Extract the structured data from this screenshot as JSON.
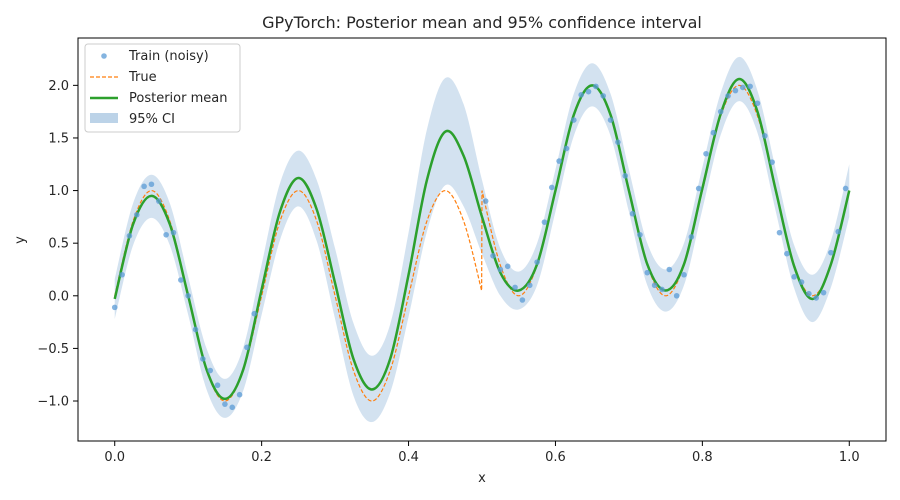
{
  "chart_data": {
    "type": "line",
    "title": "GPyTorch: Posterior mean and 95% confidence interval",
    "xlabel": "x",
    "ylabel": "y",
    "xlim": [
      -0.05,
      1.05
    ],
    "ylim": [
      -1.38,
      2.45
    ],
    "xticks": [
      0.0,
      0.2,
      0.4,
      0.6,
      0.8,
      1.0
    ],
    "xtick_labels": [
      "0.0",
      "0.2",
      "0.4",
      "0.6",
      "0.8",
      "1.0"
    ],
    "yticks": [
      -1.0,
      -0.5,
      0.0,
      0.5,
      1.0,
      1.5,
      2.0
    ],
    "ytick_labels": [
      "−1.0",
      "−0.5",
      "0.0",
      "0.5",
      "1.0",
      "1.5",
      "2.0"
    ],
    "grid": false,
    "legend_position": "top-left",
    "legend": [
      "Train (noisy)",
      "True",
      "Posterior mean",
      "95% CI"
    ],
    "colors": {
      "train": "#5b9bd5",
      "true": "#ff7f0e",
      "mean": "#2ca02c",
      "ci": "#bcd3e8"
    },
    "series": [
      {
        "name": "Train (noisy)",
        "kind": "scatter",
        "x": [
          0.0,
          0.01,
          0.02,
          0.03,
          0.04,
          0.05,
          0.06,
          0.07,
          0.08,
          0.09,
          0.1,
          0.11,
          0.12,
          0.13,
          0.14,
          0.15,
          0.16,
          0.17,
          0.18,
          0.19,
          0.505,
          0.515,
          0.525,
          0.535,
          0.545,
          0.555,
          0.565,
          0.575,
          0.585,
          0.595,
          0.605,
          0.615,
          0.625,
          0.635,
          0.645,
          0.655,
          0.665,
          0.675,
          0.685,
          0.695,
          0.705,
          0.715,
          0.725,
          0.735,
          0.745,
          0.755,
          0.765,
          0.775,
          0.785,
          0.795,
          0.805,
          0.815,
          0.825,
          0.835,
          0.845,
          0.855,
          0.865,
          0.875,
          0.885,
          0.895,
          0.905,
          0.915,
          0.925,
          0.935,
          0.945,
          0.955,
          0.965,
          0.975,
          0.985,
          0.995
        ],
        "y": [
          -0.11,
          0.2,
          0.57,
          0.77,
          1.04,
          1.06,
          0.9,
          0.58,
          0.6,
          0.15,
          0.0,
          -0.32,
          -0.6,
          -0.71,
          -0.85,
          -1.03,
          -1.06,
          -0.94,
          -0.49,
          -0.17,
          0.9,
          0.38,
          0.25,
          0.28,
          0.08,
          -0.04,
          0.1,
          0.32,
          0.7,
          1.03,
          1.28,
          1.4,
          1.67,
          1.91,
          1.94,
          1.99,
          1.9,
          1.67,
          1.46,
          1.14,
          0.78,
          0.58,
          0.22,
          0.1,
          0.06,
          0.25,
          0.0,
          0.2,
          0.56,
          1.02,
          1.35,
          1.55,
          1.75,
          1.9,
          1.95,
          1.98,
          1.99,
          1.83,
          1.52,
          1.27,
          0.6,
          0.4,
          0.18,
          0.13,
          0.02,
          -0.02,
          0.03,
          0.41,
          0.61,
          1.02
        ]
      },
      {
        "name": "True",
        "kind": "line",
        "style": "dashed",
        "x": [
          0.0,
          0.025,
          0.05,
          0.075,
          0.1,
          0.125,
          0.15,
          0.175,
          0.2,
          0.225,
          0.25,
          0.275,
          0.3,
          0.325,
          0.35,
          0.375,
          0.4,
          0.425,
          0.45,
          0.475,
          0.4995,
          0.5,
          0.525,
          0.55,
          0.575,
          0.6,
          0.625,
          0.65,
          0.675,
          0.7,
          0.725,
          0.75,
          0.775,
          0.8,
          0.825,
          0.85,
          0.875,
          0.9,
          0.925,
          0.95,
          0.975,
          1.0
        ],
        "y": [
          0.0,
          0.71,
          1.0,
          0.71,
          0.0,
          -0.71,
          -1.0,
          -0.71,
          0.0,
          0.71,
          1.0,
          0.71,
          0.0,
          -0.71,
          -1.0,
          -0.71,
          0.0,
          0.71,
          1.0,
          0.71,
          0.05,
          1.0,
          0.29,
          0.0,
          0.29,
          1.0,
          1.71,
          2.0,
          1.71,
          1.0,
          0.29,
          0.0,
          0.29,
          1.0,
          1.71,
          2.0,
          1.71,
          1.0,
          0.29,
          0.0,
          0.29,
          1.0
        ]
      },
      {
        "name": "Posterior mean",
        "kind": "line",
        "x": [
          0.0,
          0.025,
          0.05,
          0.075,
          0.1,
          0.125,
          0.15,
          0.175,
          0.2,
          0.225,
          0.25,
          0.275,
          0.3,
          0.325,
          0.35,
          0.375,
          0.4,
          0.425,
          0.45,
          0.475,
          0.5,
          0.525,
          0.55,
          0.575,
          0.6,
          0.625,
          0.65,
          0.675,
          0.7,
          0.725,
          0.75,
          0.775,
          0.8,
          0.825,
          0.85,
          0.875,
          0.9,
          0.925,
          0.95,
          0.975,
          1.0
        ],
        "y": [
          -0.03,
          0.68,
          0.95,
          0.68,
          0.0,
          -0.7,
          -0.98,
          -0.7,
          0.06,
          0.8,
          1.12,
          0.82,
          0.12,
          -0.6,
          -0.89,
          -0.6,
          0.2,
          1.1,
          1.56,
          1.33,
          0.75,
          0.22,
          0.05,
          0.3,
          1.0,
          1.72,
          2.0,
          1.72,
          1.0,
          0.3,
          0.05,
          0.3,
          1.02,
          1.73,
          2.06,
          1.75,
          1.0,
          0.28,
          -0.03,
          0.3,
          1.0
        ]
      },
      {
        "name": "95% CI",
        "kind": "band",
        "x": [
          0.0,
          0.025,
          0.05,
          0.075,
          0.1,
          0.125,
          0.15,
          0.175,
          0.2,
          0.225,
          0.25,
          0.275,
          0.3,
          0.325,
          0.35,
          0.375,
          0.4,
          0.425,
          0.45,
          0.475,
          0.5,
          0.525,
          0.55,
          0.575,
          0.6,
          0.625,
          0.65,
          0.675,
          0.7,
          0.725,
          0.75,
          0.775,
          0.8,
          0.825,
          0.85,
          0.875,
          0.9,
          0.925,
          0.95,
          0.975,
          1.0
        ],
        "lower": [
          -0.22,
          0.48,
          0.74,
          0.48,
          -0.18,
          -0.89,
          -1.16,
          -0.9,
          -0.18,
          0.53,
          0.85,
          0.52,
          -0.22,
          -0.95,
          -1.2,
          -0.92,
          -0.2,
          0.61,
          1.05,
          0.85,
          0.4,
          0.0,
          -0.13,
          0.1,
          0.8,
          1.52,
          1.8,
          1.52,
          0.8,
          0.1,
          -0.15,
          0.1,
          0.82,
          1.53,
          1.85,
          1.55,
          0.8,
          0.07,
          -0.25,
          0.08,
          0.75
        ],
        "upper": [
          0.16,
          0.88,
          1.15,
          0.88,
          0.18,
          -0.5,
          -0.79,
          -0.49,
          0.3,
          1.07,
          1.38,
          1.1,
          0.45,
          -0.26,
          -0.57,
          -0.27,
          0.6,
          1.58,
          2.07,
          1.82,
          1.1,
          0.45,
          0.23,
          0.5,
          1.2,
          1.92,
          2.21,
          1.92,
          1.2,
          0.5,
          0.25,
          0.5,
          1.22,
          1.93,
          2.27,
          1.95,
          1.2,
          0.48,
          0.2,
          0.52,
          1.25
        ]
      }
    ]
  }
}
